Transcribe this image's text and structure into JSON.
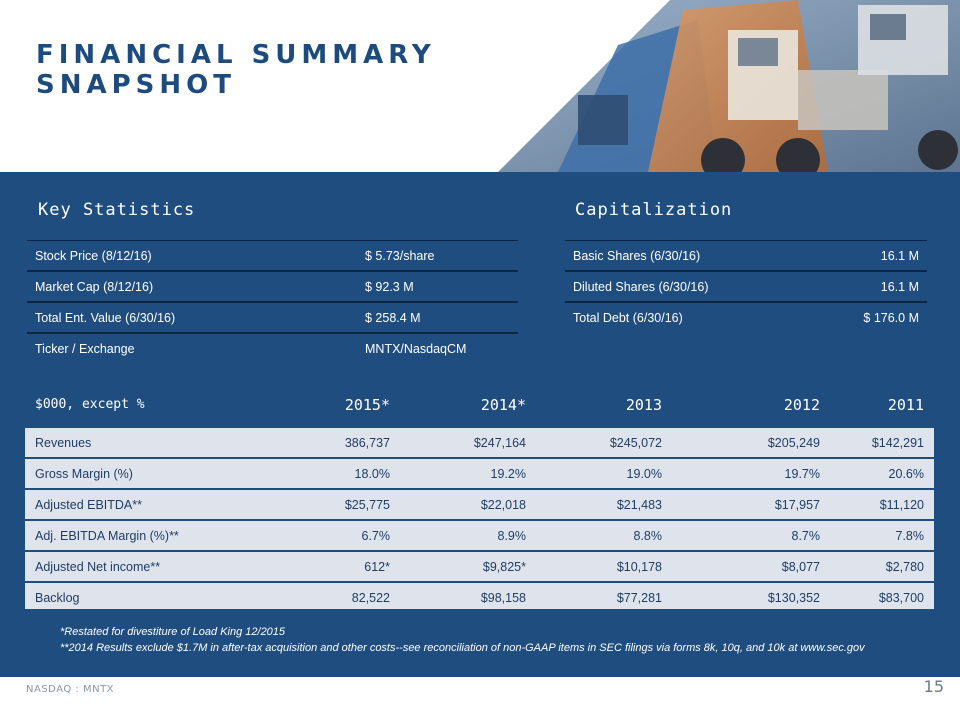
{
  "title_line1": "FINANCIAL SUMMARY",
  "title_line2": "SNAPSHOT",
  "key_statistics": {
    "heading": "Key Statistics",
    "rows": [
      {
        "label": "Stock Price  (8/12/16)",
        "value": "$ 5.73/share"
      },
      {
        "label": "Market Cap (8/12/16)",
        "value": "$ 92.3 M"
      },
      {
        "label": "Total Ent. Value (6/30/16)",
        "value": "$ 258.4 M"
      },
      {
        "label": "Ticker / Exchange",
        "value": "MNTX/NasdaqCM"
      }
    ]
  },
  "capitalization": {
    "heading": "Capitalization",
    "rows": [
      {
        "label": "Basic Shares (6/30/16)",
        "value": "16.1 M"
      },
      {
        "label": "Diluted Shares  (6/30/16)",
        "value": "16.1 M"
      },
      {
        "label": "Total Debt (6/30/16)",
        "value": "$ 176.0 M"
      }
    ]
  },
  "financials": {
    "header": [
      "$000,  except %",
      "2015*",
      "2014*",
      "2013",
      "2012",
      "2011"
    ],
    "rows": [
      [
        "Revenues",
        "386,737",
        "$247,164",
        "$245,072",
        "$205,249",
        "$142,291"
      ],
      [
        "Gross Margin (%)",
        "18.0%",
        "19.2%",
        "19.0%",
        "19.7%",
        "20.6%"
      ],
      [
        "Adjusted EBITDA**",
        "$25,775",
        "$22,018",
        "$21,483",
        "$17,957",
        "$11,120"
      ],
      [
        "Adj. EBITDA Margin (%)**",
        "6.7%",
        "8.9%",
        "8.8%",
        "8.7%",
        "7.8%"
      ],
      [
        "Adjusted Net income**",
        "612*",
        "$9,825*",
        "$10,178",
        "$8,077",
        "$2,780"
      ],
      [
        "Backlog",
        "82,522",
        "$98,158",
        "$77,281",
        "$130,352",
        "$83,700"
      ]
    ]
  },
  "notes": [
    "*Restated for divestiture of Load King 12/2015",
    "**2014 Results exclude $1.7M in after-tax acquisition and other costs--see reconciliation of non-GAAP items in SEC filings via forms 8k, 10q, and 10k at www.sec.gov"
  ],
  "footer_left": "NASDAQ : MNTX",
  "page_number": "15",
  "colors": {
    "navy": "#1f4d80",
    "title": "#1d4b7f",
    "table_bg": "#dfe4ec"
  }
}
